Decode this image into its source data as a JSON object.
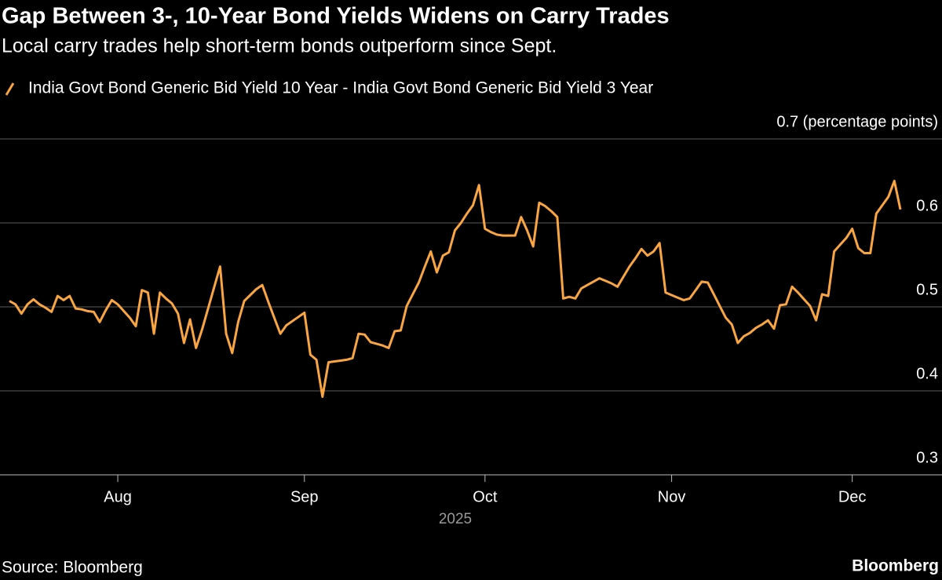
{
  "chart_data": {
    "type": "line",
    "title": "Gap Between 3-, 10-Year Bond Yields Widens on Carry Trades",
    "subtitle": "Local carry trades help short-term bonds outperform since Sept.",
    "x_label": "2025",
    "source": "Source: Bloomberg",
    "brand": "Bloomberg",
    "ylim": [
      0.3,
      0.7
    ],
    "yticks": [
      0.3,
      0.4,
      0.5,
      0.6,
      {
        "value": 0.7,
        "label": "0.7 (percentage points)"
      }
    ],
    "grid": true,
    "categories": [
      null,
      null,
      null,
      null,
      null,
      null,
      null,
      null,
      null,
      null,
      null,
      null,
      null,
      null,
      null,
      null,
      null,
      null,
      "Aug",
      null,
      null,
      null,
      null,
      null,
      null,
      null,
      null,
      null,
      null,
      null,
      null,
      null,
      null,
      null,
      null,
      null,
      null,
      null,
      null,
      null,
      null,
      null,
      null,
      null,
      null,
      null,
      null,
      null,
      null,
      "Sep",
      null,
      null,
      null,
      null,
      null,
      null,
      null,
      null,
      null,
      null,
      null,
      null,
      null,
      null,
      null,
      null,
      null,
      null,
      null,
      null,
      null,
      null,
      null,
      null,
      null,
      null,
      null,
      null,
      null,
      "Oct",
      null,
      null,
      null,
      null,
      null,
      null,
      null,
      null,
      null,
      null,
      null,
      null,
      null,
      null,
      null,
      null,
      null,
      null,
      null,
      null,
      null,
      null,
      null,
      null,
      null,
      null,
      null,
      null,
      null,
      null,
      "Nov",
      null,
      null,
      null,
      null,
      null,
      null,
      null,
      null,
      null,
      null,
      null,
      null,
      null,
      null,
      null,
      null,
      null,
      null,
      null,
      null,
      null,
      null,
      null,
      null,
      null,
      null,
      null,
      null,
      null,
      "Dec",
      null,
      null,
      null,
      null,
      null,
      null,
      null,
      null
    ],
    "series": [
      {
        "name": "India Govt Bond Generic Bid Yield 10 Year - India Govt Bond Generic Bid Yield 3 Year",
        "color": "#f9a541",
        "values": [
          0.507,
          0.503,
          0.492,
          0.503,
          0.509,
          0.503,
          0.499,
          0.494,
          0.513,
          0.508,
          0.513,
          0.498,
          0.497,
          0.495,
          0.494,
          0.482,
          0.496,
          0.508,
          0.503,
          0.495,
          0.487,
          0.477,
          0.52,
          0.517,
          0.468,
          0.517,
          0.51,
          0.504,
          0.492,
          0.457,
          0.485,
          0.451,
          0.473,
          0.498,
          0.523,
          0.548,
          0.468,
          0.445,
          0.482,
          0.507,
          0.514,
          0.521,
          0.526,
          0.506,
          0.487,
          0.468,
          0.478,
          0.483,
          0.488,
          0.493,
          0.443,
          0.437,
          0.393,
          0.434,
          0.435,
          0.436,
          0.437,
          0.439,
          0.468,
          0.467,
          0.458,
          0.456,
          0.454,
          0.451,
          0.471,
          0.472,
          0.501,
          0.515,
          0.529,
          0.548,
          0.566,
          0.541,
          0.561,
          0.565,
          0.591,
          0.6,
          0.611,
          0.621,
          0.645,
          0.593,
          0.589,
          0.586,
          0.585,
          0.585,
          0.585,
          0.607,
          0.591,
          0.572,
          0.624,
          0.62,
          0.614,
          0.607,
          0.51,
          0.512,
          0.51,
          0.522,
          0.526,
          0.53,
          0.534,
          0.531,
          0.528,
          0.524,
          0.536,
          0.548,
          0.558,
          0.569,
          0.561,
          0.566,
          0.576,
          0.517,
          0.514,
          0.511,
          0.508,
          0.51,
          0.52,
          0.53,
          0.529,
          0.515,
          0.501,
          0.487,
          0.479,
          0.457,
          0.465,
          0.469,
          0.475,
          0.479,
          0.484,
          0.474,
          0.502,
          0.503,
          0.524,
          0.517,
          0.509,
          0.501,
          0.484,
          0.515,
          0.513,
          0.566,
          0.574,
          0.582,
          0.593,
          0.57,
          0.564,
          0.564,
          0.611,
          0.621,
          0.631,
          0.65,
          0.616
        ]
      }
    ]
  }
}
